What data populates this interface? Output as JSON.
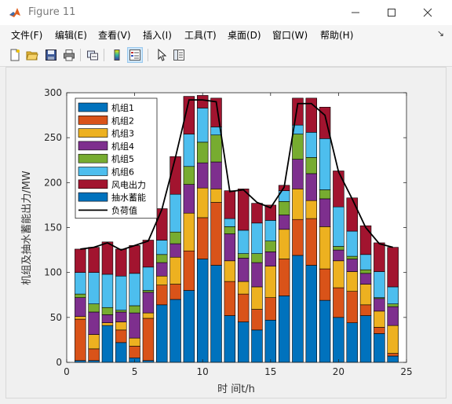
{
  "window": {
    "title": "Figure 11"
  },
  "menu": [
    "文件(F)",
    "编辑(E)",
    "查看(V)",
    "插入(I)",
    "工具(T)",
    "桌面(D)",
    "窗口(W)",
    "帮助(H)"
  ],
  "toolbar": [
    "new-figure",
    "open-file",
    "save",
    "print",
    "link",
    "insert-colorbar",
    "insert-legend",
    "edit-plot",
    "property-inspector"
  ],
  "chart_data": {
    "type": "bar",
    "stacked": true,
    "xlabel": "时 间t/h",
    "ylabel": "机组及抽水蓄能出力/MW",
    "xlim": [
      0,
      25
    ],
    "ylim": [
      0,
      300
    ],
    "xticks": [
      0,
      5,
      10,
      15,
      20,
      25
    ],
    "yticks": [
      0,
      50,
      100,
      150,
      200,
      250,
      300
    ],
    "x": [
      1,
      2,
      3,
      4,
      5,
      6,
      7,
      8,
      9,
      10,
      11,
      12,
      13,
      14,
      15,
      16,
      17,
      18,
      19,
      20,
      21,
      22,
      23,
      24
    ],
    "legend_position": "top-left",
    "series": [
      {
        "name": "机组1",
        "color": "#0072BD",
        "values": [
          2,
          2,
          41,
          22,
          5,
          2,
          64,
          70,
          80,
          115,
          108,
          52,
          45,
          36,
          47,
          74,
          119,
          108,
          69,
          50,
          44,
          52,
          32,
          7
        ]
      },
      {
        "name": "机组2",
        "color": "#D95319",
        "values": [
          46,
          13,
          0,
          14,
          13,
          47,
          22,
          17,
          44,
          46,
          70,
          38,
          31,
          23,
          25,
          41,
          40,
          52,
          35,
          33,
          35,
          12,
          7,
          3
        ]
      },
      {
        "name": "机组3",
        "color": "#EDB120",
        "values": [
          3,
          16,
          3,
          9,
          9,
          6,
          10,
          30,
          42,
          33,
          15,
          23,
          14,
          25,
          35,
          33,
          34,
          20,
          47,
          30,
          22,
          23,
          18,
          31
        ]
      },
      {
        "name": "机组4",
        "color": "#7E2F8E",
        "values": [
          21,
          25,
          9,
          11,
          28,
          23,
          15,
          15,
          32,
          28,
          30,
          30,
          26,
          27,
          16,
          16,
          33,
          30,
          31,
          12,
          14,
          12,
          14,
          21
        ]
      },
      {
        "name": "机组5",
        "color": "#77AC30",
        "values": [
          4,
          9,
          8,
          2,
          8,
          2,
          9,
          13,
          20,
          23,
          30,
          8,
          5,
          10,
          12,
          15,
          28,
          18,
          10,
          4,
          3,
          4,
          1,
          3
        ]
      },
      {
        "name": "机组6",
        "color": "#4DBEEE",
        "values": [
          24,
          35,
          37,
          38,
          36,
          26,
          16,
          42,
          36,
          38,
          9,
          9,
          26,
          34,
          23,
          12,
          10,
          28,
          57,
          44,
          28,
          17,
          29,
          19
        ]
      },
      {
        "name": "风电出力",
        "color": "#A2142F",
        "values": [
          26,
          28,
          36,
          30,
          31,
          30,
          35,
          42,
          42,
          14,
          32,
          31,
          46,
          22,
          17,
          6,
          30,
          38,
          35,
          40,
          37,
          32,
          32,
          44
        ]
      },
      {
        "name": "抽水蓄能",
        "color": "#0072BD",
        "values": [
          0,
          0,
          0,
          0,
          0,
          0,
          0,
          0,
          0,
          0,
          0,
          0,
          0,
          0,
          0,
          0,
          0,
          0,
          0,
          0,
          0,
          0,
          0,
          0
        ]
      }
    ],
    "line": {
      "name": "负荷值",
      "color": "#000000",
      "values": [
        126,
        128,
        133,
        125,
        130,
        135,
        170,
        228,
        292,
        292,
        290,
        190,
        192,
        178,
        172,
        195,
        288,
        288,
        275,
        212,
        182,
        150,
        132,
        128
      ]
    }
  }
}
